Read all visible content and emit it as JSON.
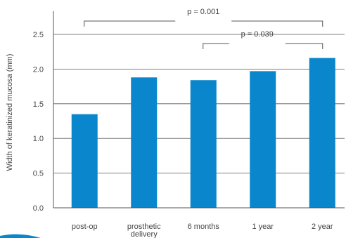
{
  "chart_data": {
    "type": "bar",
    "categories": [
      "post-op",
      "prosthetic delivery",
      "6 months",
      "1 year",
      "2 year"
    ],
    "category_lines": [
      [
        "post-op"
      ],
      [
        "prosthetic",
        "delivery"
      ],
      [
        "6 months"
      ],
      [
        "1 year"
      ],
      [
        "2 year"
      ]
    ],
    "values": [
      1.35,
      1.88,
      1.84,
      1.97,
      2.16
    ],
    "ylabel": "Width of keratinized mucosa (mm)",
    "xlabel": "",
    "title": "",
    "ylim": [
      0,
      2.7
    ],
    "yticks": [
      "0.0",
      "0.5",
      "1.0",
      "1.5",
      "2.0",
      "2.5"
    ],
    "ytick_values": [
      0,
      0.5,
      1.0,
      1.5,
      2.0,
      2.5
    ],
    "grid": true,
    "bar_color": "#0a86cc",
    "grid_color": "#555555",
    "significance": [
      {
        "from": "post-op",
        "to": "2 year",
        "label": "p = 0.001"
      },
      {
        "from": "6 months",
        "to": "2 year",
        "label": "p = 0.039"
      }
    ]
  },
  "decor": {
    "corner_color": "#0a86cc"
  }
}
